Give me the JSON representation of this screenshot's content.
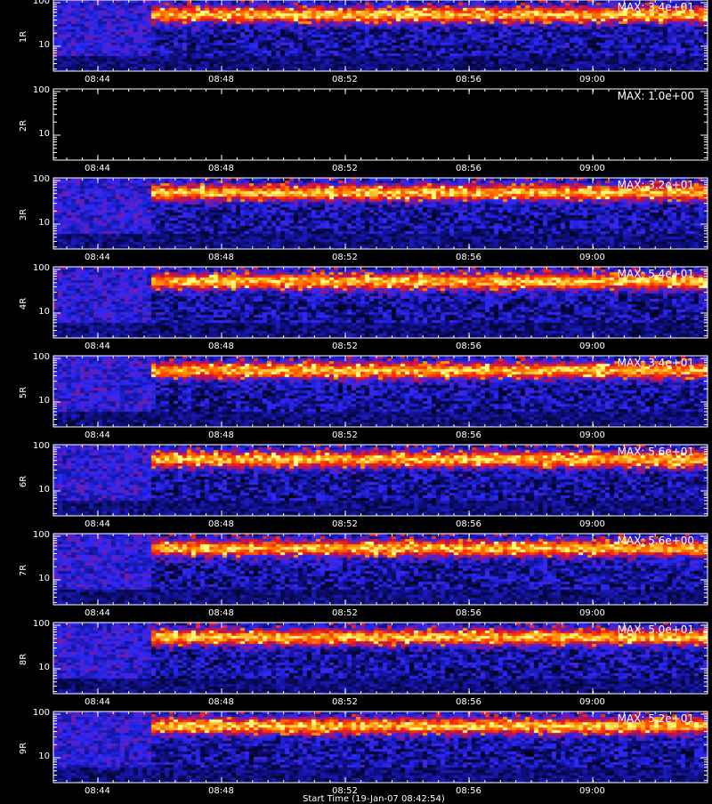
{
  "chart_data": {
    "type": "heatmap",
    "panels": [
      {
        "label": "1R",
        "max_text": "MAX: 3.4e+01",
        "empty": false
      },
      {
        "label": "2R",
        "max_text": "MAX: 1.0e+00",
        "empty": true
      },
      {
        "label": "3R",
        "max_text": "MAX: 3.2e+01",
        "empty": false
      },
      {
        "label": "4R",
        "max_text": "MAX: 5.4e+01",
        "empty": false
      },
      {
        "label": "5R",
        "max_text": "MAX: 3.4e+01",
        "empty": false
      },
      {
        "label": "6R",
        "max_text": "MAX: 5.6e+01",
        "empty": false
      },
      {
        "label": "7R",
        "max_text": "MAX: 5.6e+00",
        "empty": false
      },
      {
        "label": "8R",
        "max_text": "MAX: 5.0e+01",
        "empty": false
      },
      {
        "label": "9R",
        "max_text": "MAX: 5.2e+01",
        "empty": false
      }
    ],
    "x_ticks": [
      "08:44",
      "08:48",
      "08:52",
      "08:56",
      "09:00"
    ],
    "y_ticks": [
      "100",
      "10"
    ],
    "y_scale": "log",
    "x_label": "Start Time (19-Jan-07 08:42:54)",
    "colormap": [
      "#000000",
      "#10108a",
      "#2a2aff",
      "#b01060",
      "#ff2a00",
      "#ff9a00",
      "#ffff80"
    ]
  }
}
